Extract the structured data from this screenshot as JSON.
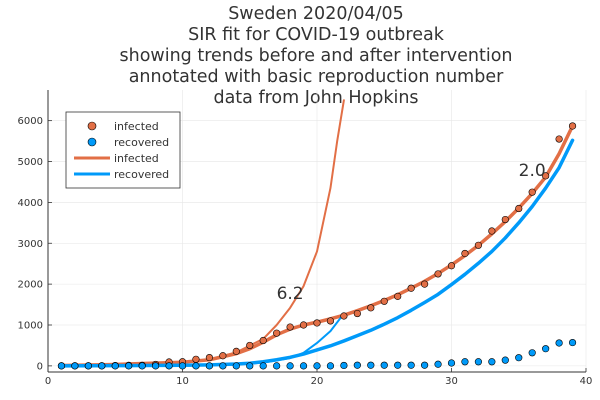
{
  "chart_data": {
    "type": "scatter",
    "title_lines": [
      "Sweden 2020/04/05",
      "SIR fit for COVID-19 outbreak",
      "showing trends before and after intervention",
      "annotated with basic reproduction number",
      "data from John Hopkins"
    ],
    "xlabel": "",
    "ylabel": "",
    "xlim": [
      0,
      40
    ],
    "ylim": [
      -150,
      6750
    ],
    "xticks": [
      0,
      10,
      20,
      30,
      40
    ],
    "yticks": [
      0,
      1000,
      2000,
      3000,
      4000,
      5000,
      6000
    ],
    "grid": true,
    "legend_position": "top-left",
    "legend": [
      {
        "label": "infected",
        "kind": "marker",
        "color": "#e26f46"
      },
      {
        "label": "recovered",
        "kind": "marker",
        "color": "#009af9"
      },
      {
        "label": "infected",
        "kind": "line",
        "color": "#e26f46"
      },
      {
        "label": "recovered",
        "kind": "line",
        "color": "#009af9"
      }
    ],
    "series": [
      {
        "name": "infected",
        "kind": "scatter",
        "color": "#e26f46",
        "x": [
          1,
          2,
          3,
          4,
          5,
          6,
          7,
          8,
          9,
          10,
          11,
          12,
          13,
          14,
          15,
          16,
          17,
          18,
          19,
          20,
          21,
          22,
          23,
          24,
          25,
          26,
          27,
          28,
          29,
          30,
          31,
          32,
          33,
          34,
          35,
          36,
          37,
          38,
          39
        ],
        "y": [
          1,
          1,
          1,
          1,
          7,
          12,
          14,
          35,
          94,
          101,
          161,
          203,
          248,
          355,
          500,
          620,
          800,
          950,
          1000,
          1050,
          1100,
          1220,
          1280,
          1420,
          1580,
          1700,
          1900,
          2000,
          2250,
          2450,
          2750,
          2950,
          3300,
          3580,
          3850,
          4250,
          4650,
          5550,
          5870
        ]
      },
      {
        "name": "recovered",
        "kind": "scatter",
        "color": "#009af9",
        "x": [
          1,
          2,
          3,
          4,
          5,
          6,
          7,
          8,
          9,
          10,
          11,
          12,
          13,
          14,
          15,
          16,
          17,
          18,
          19,
          20,
          21,
          22,
          23,
          24,
          25,
          26,
          27,
          28,
          29,
          30,
          31,
          32,
          33,
          34,
          35,
          36,
          37,
          38,
          39
        ],
        "y": [
          0,
          0,
          0,
          0,
          0,
          0,
          0,
          0,
          0,
          0,
          0,
          0,
          0,
          0,
          0,
          0,
          0,
          0,
          0,
          0,
          0,
          10,
          16,
          16,
          16,
          16,
          16,
          16,
          40,
          70,
          100,
          100,
          100,
          140,
          200,
          320,
          420,
          560,
          570
        ]
      },
      {
        "name": "infected",
        "kind": "line",
        "color": "#e26f46",
        "width": 3.5,
        "x": [
          1,
          5,
          10,
          12,
          14,
          15,
          16,
          17,
          18,
          19,
          20,
          21,
          22,
          23,
          24,
          25,
          26,
          27,
          28,
          29,
          30,
          31,
          32,
          33,
          34,
          35,
          36,
          37,
          38,
          39
        ],
        "y": [
          10,
          35,
          90,
          150,
          300,
          420,
          580,
          760,
          900,
          1000,
          1070,
          1150,
          1240,
          1350,
          1470,
          1600,
          1740,
          1900,
          2070,
          2260,
          2470,
          2700,
          2950,
          3230,
          3530,
          3860,
          4220,
          4620,
          5190,
          5870
        ]
      },
      {
        "name": "recovered",
        "kind": "line",
        "color": "#009af9",
        "width": 3.5,
        "x": [
          1,
          5,
          10,
          12,
          14,
          15,
          16,
          17,
          18,
          19,
          20,
          21,
          22,
          23,
          24,
          25,
          26,
          27,
          28,
          29,
          30,
          31,
          32,
          33,
          34,
          35,
          36,
          37,
          38,
          39
        ],
        "y": [
          0,
          5,
          15,
          25,
          45,
          65,
          100,
          150,
          210,
          290,
          390,
          490,
          610,
          740,
          870,
          1020,
          1180,
          1360,
          1550,
          1750,
          1990,
          2240,
          2510,
          2800,
          3130,
          3500,
          3900,
          4350,
          4850,
          5520
        ]
      },
      {
        "name": "",
        "kind": "line",
        "color": "#e26f46",
        "width": 2,
        "x": [
          10,
          12,
          14,
          16,
          17,
          18,
          19,
          20,
          21,
          21.5,
          22
        ],
        "y": [
          90,
          160,
          330,
          660,
          1000,
          1420,
          1950,
          2800,
          4350,
          5500,
          6500
        ]
      },
      {
        "name": "",
        "kind": "line",
        "color": "#009af9",
        "width": 2,
        "x": [
          10,
          12,
          14,
          16,
          18,
          19,
          20,
          21,
          22
        ],
        "y": [
          5,
          15,
          35,
          80,
          190,
          320,
          560,
          850,
          1280
        ]
      }
    ],
    "annotations": [
      {
        "text": "6.2",
        "x": 18.0,
        "y": 1780
      },
      {
        "text": "2.0",
        "x": 36.0,
        "y": 4790
      }
    ]
  }
}
